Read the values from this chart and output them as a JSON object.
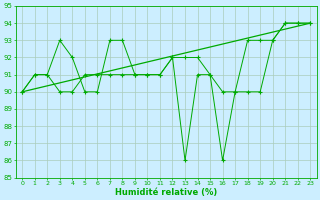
{
  "title": "",
  "xlabel": "Humidité relative (%)",
  "ylabel": "",
  "bg_color": "#cceeff",
  "grid_color": "#aaccbb",
  "line_color": "#00aa00",
  "ylim": [
    85,
    95
  ],
  "xlim": [
    -0.5,
    23.5
  ],
  "yticks": [
    85,
    86,
    87,
    88,
    89,
    90,
    91,
    92,
    93,
    94,
    95
  ],
  "xticks": [
    0,
    1,
    2,
    3,
    4,
    5,
    6,
    7,
    8,
    9,
    10,
    11,
    12,
    13,
    14,
    15,
    16,
    17,
    18,
    19,
    20,
    21,
    22,
    23
  ],
  "series1_x": [
    0,
    1,
    2,
    3,
    4,
    5,
    6,
    7,
    8,
    9,
    10,
    11,
    12,
    13,
    14,
    15,
    16,
    17,
    18,
    19,
    20,
    21,
    22,
    23
  ],
  "series1_y": [
    90,
    91,
    91,
    93,
    92,
    90,
    90,
    93,
    93,
    91,
    91,
    91,
    92,
    86,
    91,
    91,
    86,
    90,
    90,
    90,
    93,
    94,
    94,
    94
  ],
  "series2_x": [
    0,
    1,
    2,
    3,
    4,
    5,
    6,
    7,
    8,
    9,
    10,
    11,
    12,
    13,
    14,
    15,
    16,
    17,
    18,
    19,
    20,
    21,
    22,
    23
  ],
  "series2_y": [
    90,
    91,
    91,
    90,
    90,
    91,
    91,
    91,
    91,
    91,
    91,
    91,
    92,
    92,
    92,
    91,
    90,
    90,
    93,
    93,
    93,
    94,
    94,
    94
  ],
  "series3_x": [
    0,
    23
  ],
  "series3_y": [
    90.0,
    94.0
  ]
}
